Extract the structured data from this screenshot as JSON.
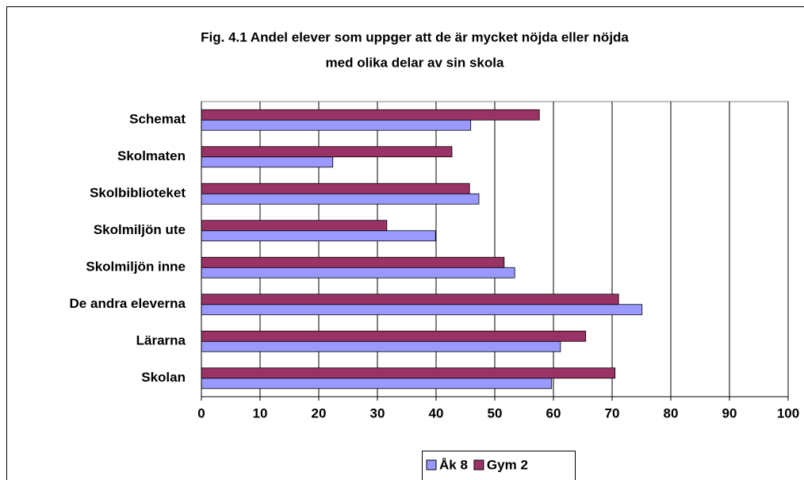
{
  "chart_data": {
    "type": "barh",
    "title": "Fig. 4.1 Andel elever som uppger att de är mycket nöjda eller nöjda",
    "subtitle": "med olika delar av sin skola",
    "categories": [
      "Schemat",
      "Skolmaten",
      "Skolbiblioteket",
      "Skolmiljön ute",
      "Skolmiljön inne",
      "De andra eleverna",
      "Lärarna",
      "Skolan"
    ],
    "series": [
      {
        "name": "Åk 8",
        "color": "#9999ff",
        "values": [
          45.9,
          22.4,
          47.3,
          39.9,
          53.4,
          75.1,
          61.2,
          59.7
        ]
      },
      {
        "name": "Gym 2",
        "color": "#993366",
        "values": [
          57.6,
          42.7,
          45.7,
          31.6,
          51.6,
          71.1,
          65.5,
          70.5
        ]
      }
    ],
    "xlim": [
      0,
      100
    ],
    "xticks": [
      0,
      10,
      20,
      30,
      40,
      50,
      60,
      70,
      80,
      90,
      100
    ],
    "grid": true,
    "legend": "bottom"
  }
}
